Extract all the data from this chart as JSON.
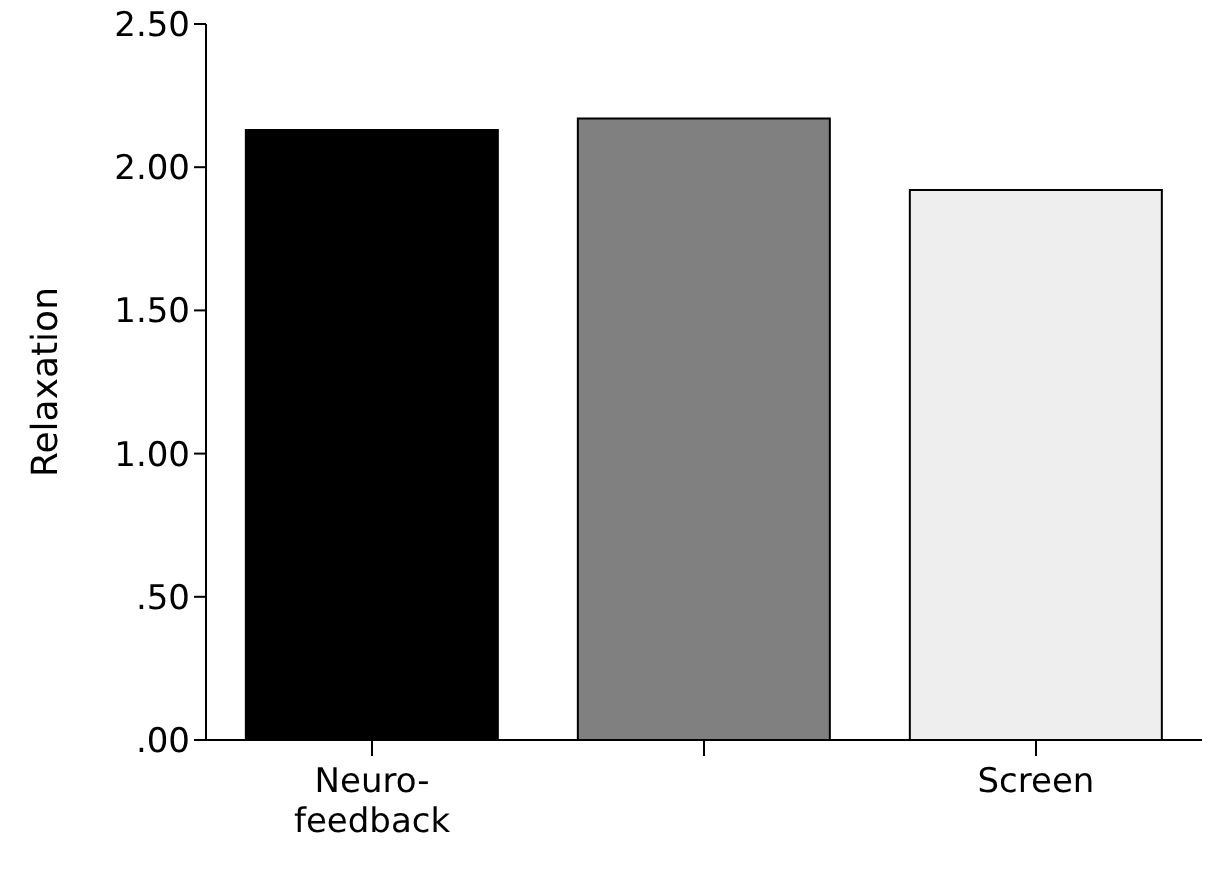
{
  "chart_data": {
    "type": "bar",
    "categories": [
      "Neuro-feedback",
      null,
      "Screen"
    ],
    "values": [
      2.13,
      2.17,
      1.92
    ],
    "colors": [
      "#000000",
      "#808080",
      "#eeeeee"
    ],
    "ylabel": "Relaxation",
    "ylim": [
      0,
      2.5
    ],
    "yticks": [
      {
        "value": 0,
        "label": ".00"
      },
      {
        "value": 0.5,
        "label": ".50"
      },
      {
        "value": 1,
        "label": "1.00"
      },
      {
        "value": 1.5,
        "label": "1.50"
      },
      {
        "value": 2,
        "label": "2.00"
      },
      {
        "value": 2.5,
        "label": "2.50"
      }
    ],
    "grid": false
  }
}
